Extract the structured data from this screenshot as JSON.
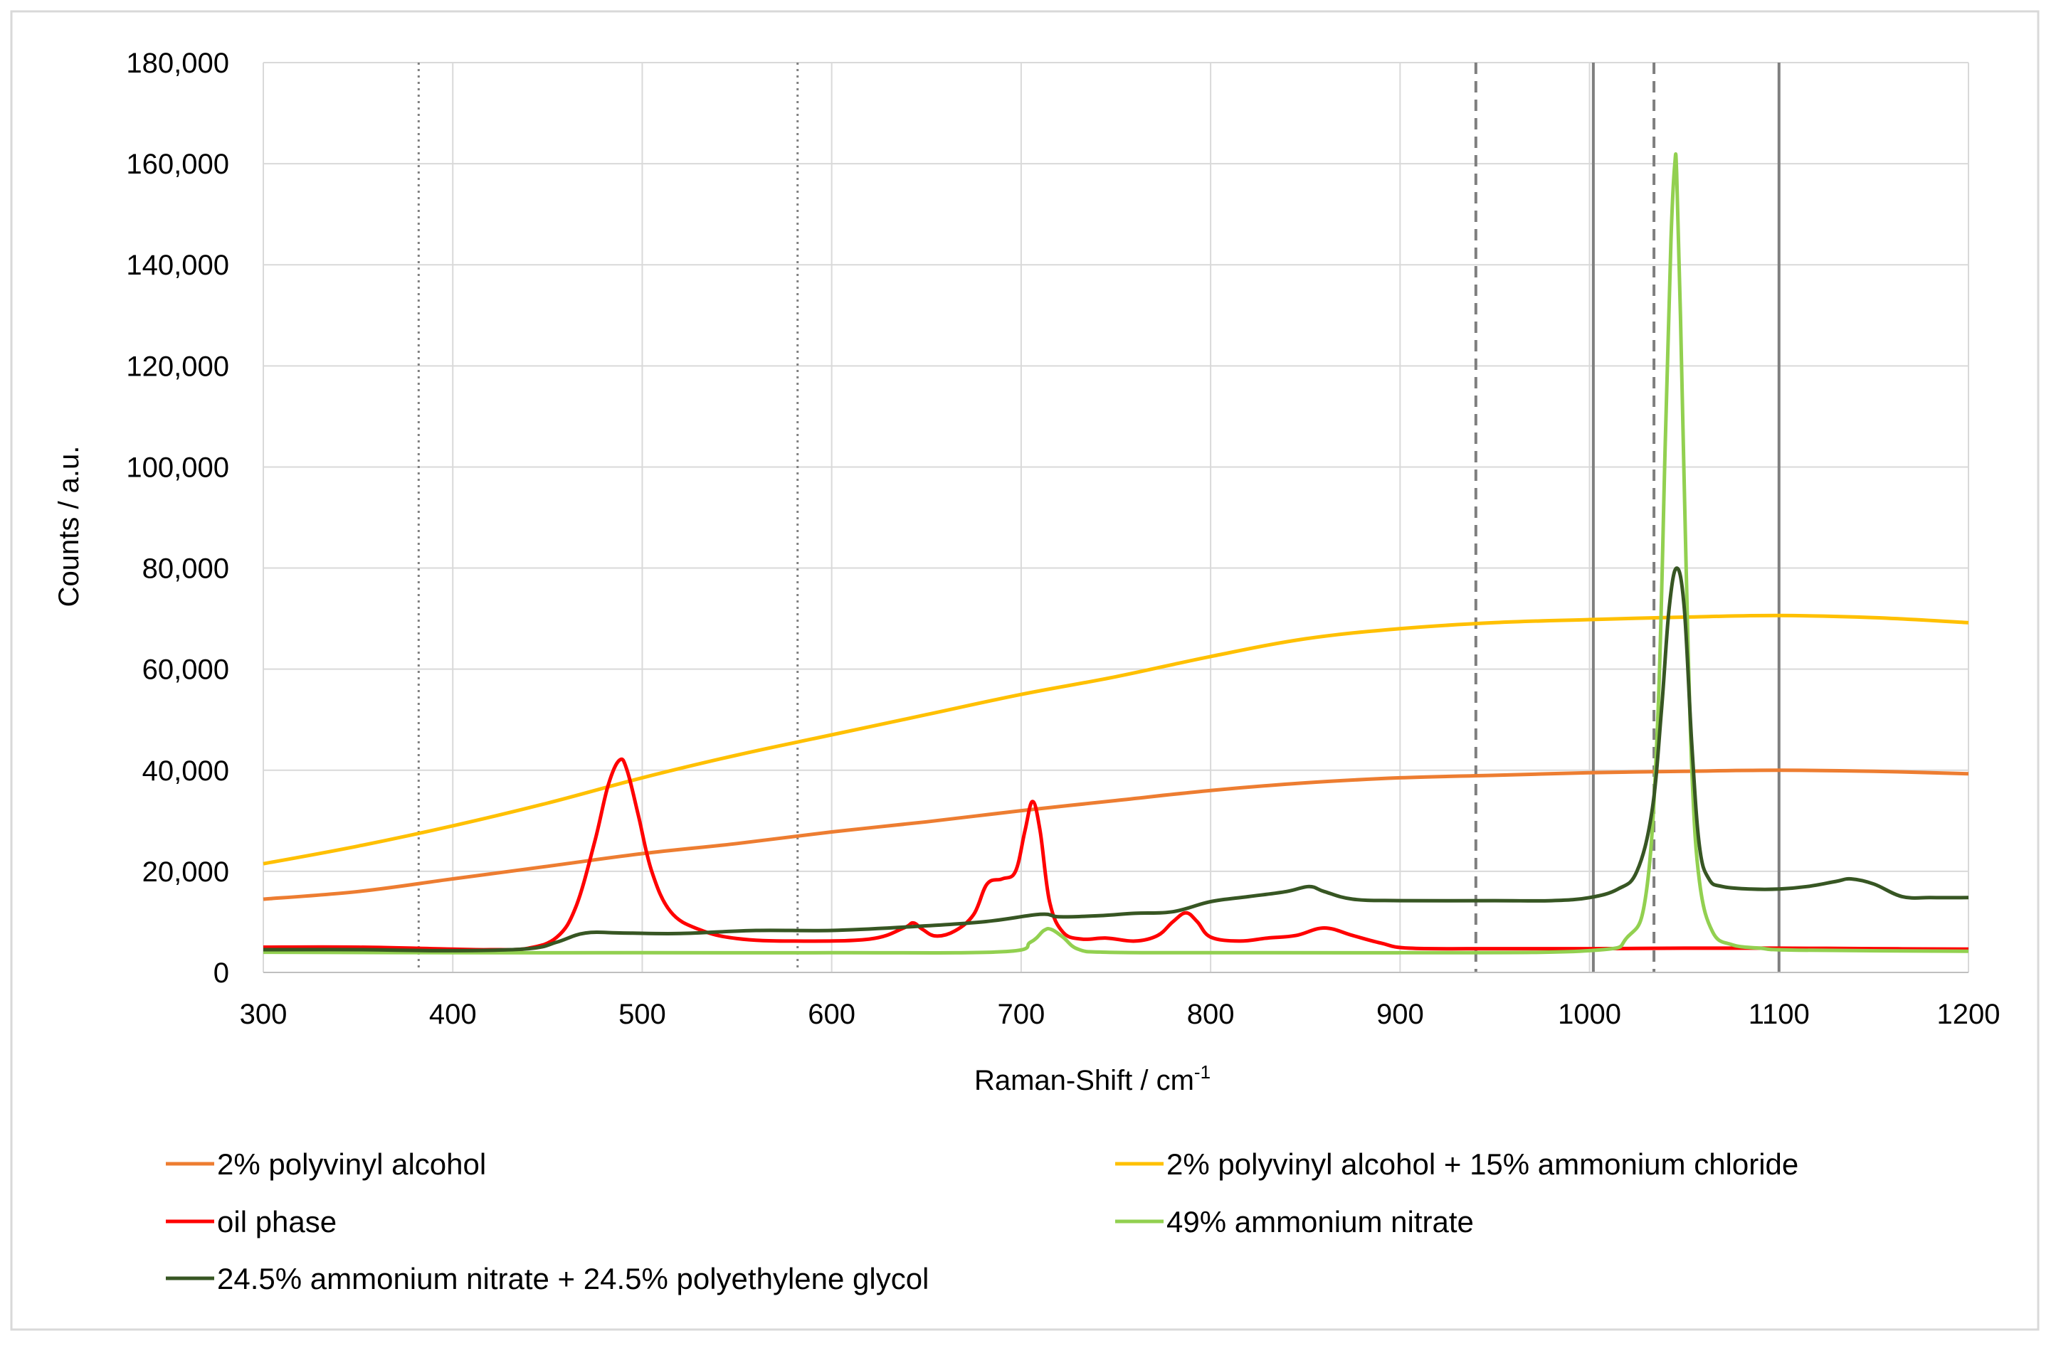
{
  "chart_data": {
    "type": "line",
    "title": "",
    "xlabel": "Raman-Shift / cm",
    "xlabel_superscript": "-1",
    "ylabel": "Counts / a.u.",
    "xlim": [
      300,
      1200
    ],
    "ylim": [
      0,
      180000
    ],
    "x_ticks": [
      300,
      400,
      500,
      600,
      700,
      800,
      900,
      1000,
      1100,
      1200
    ],
    "x_tick_labels": [
      "300",
      "400",
      "500",
      "600",
      "700",
      "800",
      "900",
      "1000",
      "1100",
      "1200"
    ],
    "y_ticks": [
      0,
      20000,
      40000,
      60000,
      80000,
      100000,
      120000,
      140000,
      160000,
      180000
    ],
    "y_tick_labels": [
      "0",
      "20,000",
      "40,000",
      "60,000",
      "80,000",
      "100,000",
      "120,000",
      "140,000",
      "160,000",
      "180,000"
    ],
    "grid": true,
    "legend_position": "bottom",
    "reference_lines": [
      {
        "x": 382,
        "style": "dotted",
        "color": "#7f7f7f"
      },
      {
        "x": 582,
        "style": "dotted",
        "color": "#7f7f7f"
      },
      {
        "x": 940,
        "style": "dashed",
        "color": "#7f7f7f"
      },
      {
        "x": 1034,
        "style": "dashed",
        "color": "#7f7f7f"
      },
      {
        "x": 1002,
        "style": "solid",
        "color": "#7f7f7f"
      },
      {
        "x": 1100,
        "style": "solid",
        "color": "#7f7f7f"
      }
    ],
    "series": [
      {
        "name": "2% polyvinyl alcohol",
        "color": "#ed7d31",
        "x": [
          300,
          350,
          400,
          450,
          500,
          550,
          600,
          650,
          700,
          750,
          800,
          850,
          900,
          950,
          1000,
          1050,
          1100,
          1150,
          1200
        ],
        "y": [
          14500,
          16000,
          18500,
          21000,
          23500,
          25500,
          27800,
          29800,
          32000,
          34000,
          36000,
          37500,
          38500,
          39000,
          39500,
          39800,
          40000,
          39800,
          39300
        ]
      },
      {
        "name": "2% polyvinyl alcohol + 15% ammonium chloride",
        "color": "#ffc000",
        "x": [
          300,
          350,
          400,
          450,
          500,
          550,
          600,
          650,
          700,
          750,
          800,
          850,
          900,
          950,
          1000,
          1050,
          1100,
          1150,
          1200
        ],
        "y": [
          21500,
          25000,
          29000,
          33500,
          38500,
          43000,
          47000,
          51000,
          55000,
          58500,
          62500,
          66000,
          68000,
          69200,
          69800,
          70300,
          70600,
          70200,
          69200
        ]
      },
      {
        "name": "oil phase",
        "color": "#ff0000",
        "x": [
          300,
          350,
          400,
          420,
          440,
          455,
          465,
          475,
          482,
          488,
          492,
          498,
          505,
          515,
          530,
          550,
          580,
          620,
          638,
          643,
          648,
          655,
          665,
          675,
          682,
          690,
          697,
          702,
          706,
          710,
          715,
          722,
          732,
          745,
          760,
          772,
          780,
          787,
          793,
          800,
          815,
          830,
          845,
          860,
          875,
          890,
          905,
          950,
          1000,
          1050,
          1100,
          1150,
          1200
        ],
        "y": [
          5000,
          5000,
          4600,
          4500,
          4800,
          7000,
          13000,
          26000,
          37000,
          42000,
          40000,
          31000,
          20000,
          12000,
          8500,
          6700,
          6200,
          6600,
          8800,
          9800,
          8500,
          7200,
          8200,
          11500,
          17500,
          18500,
          20000,
          28000,
          33800,
          28000,
          14000,
          8000,
          6600,
          6800,
          6200,
          7300,
          10000,
          11800,
          10000,
          7000,
          6200,
          6800,
          7300,
          8800,
          7300,
          5800,
          4800,
          4700,
          4700,
          4800,
          4800,
          4700,
          4600
        ]
      },
      {
        "name": "49% ammonium nitrate",
        "color": "#92d050",
        "x": [
          300,
          400,
          500,
          600,
          690,
          705,
          712,
          716,
          722,
          730,
          745,
          800,
          900,
          1000,
          1020,
          1030,
          1036,
          1040,
          1043,
          1045,
          1046,
          1048,
          1051,
          1054,
          1058,
          1065,
          1075,
          1090,
          1110,
          1200
        ],
        "y": [
          4000,
          3900,
          3900,
          3900,
          4100,
          6000,
          8300,
          8500,
          7000,
          4600,
          4000,
          3900,
          3900,
          4300,
          7000,
          16000,
          50000,
          105000,
          145000,
          160000,
          158000,
          130000,
          80000,
          40000,
          18000,
          8000,
          5500,
          4800,
          4400,
          4200
        ]
      },
      {
        "name": "24.5% ammonium nitrate + 24.5% polyethylene glycol",
        "color": "#375623",
        "x": [
          300,
          350,
          400,
          440,
          455,
          470,
          490,
          520,
          560,
          600,
          640,
          680,
          710,
          720,
          740,
          760,
          780,
          800,
          820,
          840,
          852,
          860,
          875,
          900,
          950,
          980,
          1000,
          1015,
          1025,
          1033,
          1038,
          1042,
          1046,
          1050,
          1054,
          1058,
          1063,
          1070,
          1085,
          1100,
          1115,
          1130,
          1138,
          1150,
          1165,
          1180,
          1200
        ],
        "y": [
          4500,
          4500,
          4300,
          4700,
          6000,
          7800,
          7800,
          7700,
          8300,
          8300,
          9000,
          10000,
          11500,
          11000,
          11200,
          11700,
          12000,
          14000,
          15000,
          16000,
          17000,
          16000,
          14500,
          14200,
          14200,
          14200,
          14800,
          16500,
          20000,
          32000,
          52000,
          72000,
          80000,
          72000,
          45000,
          25000,
          18500,
          17000,
          16500,
          16500,
          17000,
          18000,
          18500,
          17500,
          15000,
          14800,
          14800
        ]
      }
    ]
  }
}
